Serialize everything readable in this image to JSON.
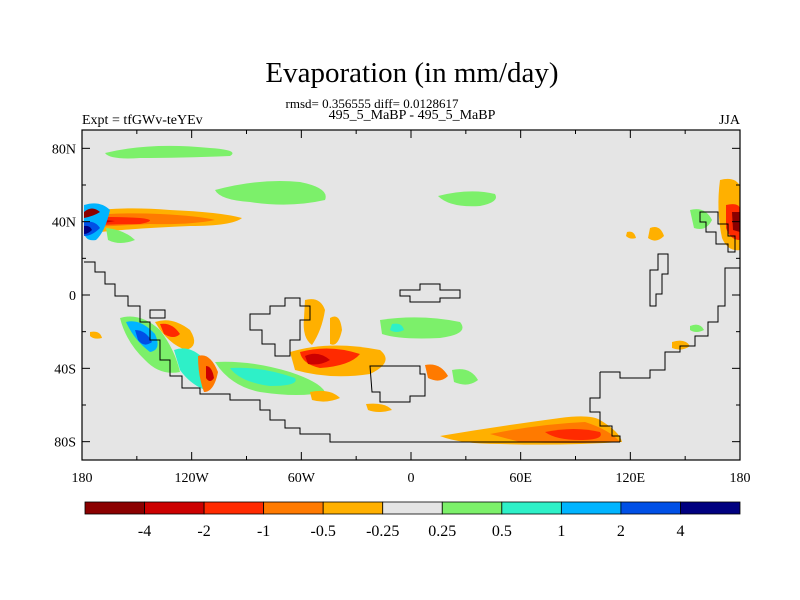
{
  "title": "Evaporation (in mm/day)",
  "stats_line": "rmsd= 0.356555 diff= 0.0128617",
  "left_label": "Expt = tfGWv-teYEv",
  "center_label": "495_5_MaBP - 495_5_MaBP",
  "right_label": "JJA",
  "lat_ticks": [
    "80N",
    "40N",
    "0",
    "40S",
    "80S"
  ],
  "lon_ticks": [
    "180",
    "120W",
    "60W",
    "0",
    "60E",
    "120E",
    "180"
  ],
  "colorbar": {
    "labels": [
      "-4",
      "-2",
      "-1",
      "-0.5",
      "-0.25",
      "0.25",
      "0.5",
      "1",
      "2",
      "4"
    ],
    "colors": [
      "#8b0000",
      "#cc0000",
      "#ff2a00",
      "#ff7a00",
      "#ffb000",
      "#e5e5e5",
      "#7cf06a",
      "#2ef0c8",
      "#00b4ff",
      "#0050e6",
      "#000080"
    ]
  },
  "chart_data": {
    "type": "heatmap",
    "field": "Evaporation difference",
    "units": "mm/day",
    "season": "JJA",
    "lon_range": [
      -180,
      180
    ],
    "lat_range": [
      -90,
      90
    ],
    "levels": [
      -4,
      -2,
      -1,
      -0.5,
      -0.25,
      0.25,
      0.5,
      1,
      2,
      4
    ],
    "background_color": "#e5e5e5",
    "continent_outline_color": "#000000"
  }
}
